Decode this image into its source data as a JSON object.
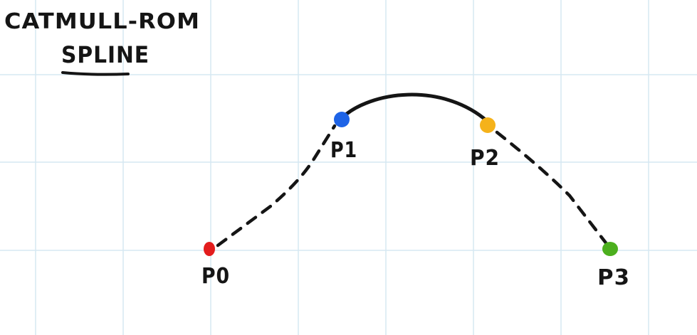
{
  "title": {
    "line1": "CATMULL-ROM",
    "line2": "SPLINE"
  },
  "grid": {
    "visible": true,
    "color": "#d6e8f2"
  },
  "points": [
    {
      "id": "p0",
      "label": "P0",
      "color": "#e31d1d"
    },
    {
      "id": "p1",
      "label": "P1",
      "color": "#1e63e6"
    },
    {
      "id": "p2",
      "label": "P2",
      "color": "#f5b21a"
    },
    {
      "id": "p3",
      "label": "P3",
      "color": "#4caf1e"
    }
  ],
  "colors": {
    "ink": "#151515"
  }
}
